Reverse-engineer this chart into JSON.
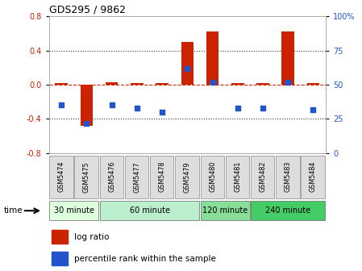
{
  "title": "GDS295 / 9862",
  "samples": [
    "GSM5474",
    "GSM5475",
    "GSM5476",
    "GSM5477",
    "GSM5478",
    "GSM5479",
    "GSM5480",
    "GSM5481",
    "GSM5482",
    "GSM5483",
    "GSM5484"
  ],
  "log_ratio": [
    0.02,
    -0.48,
    0.03,
    0.02,
    0.02,
    0.5,
    0.62,
    0.02,
    0.02,
    0.62,
    0.02
  ],
  "percentile": [
    35,
    22,
    35,
    33,
    30,
    62,
    52,
    33,
    33,
    52,
    32
  ],
  "ylim_left": [
    -0.8,
    0.8
  ],
  "ylim_right": [
    0,
    100
  ],
  "yticks_left": [
    -0.8,
    -0.4,
    0.0,
    0.4,
    0.8
  ],
  "yticks_right": [
    0,
    25,
    50,
    75,
    100
  ],
  "bar_color": "#cc2200",
  "dot_color": "#2255cc",
  "zero_line_color": "#cc2200",
  "dotted_line_color": "#333333",
  "groups": [
    {
      "label": "30 minute",
      "start": 0,
      "end": 1,
      "color": "#ddffdd"
    },
    {
      "label": "60 minute",
      "start": 2,
      "end": 5,
      "color": "#bbeecc"
    },
    {
      "label": "120 minute",
      "start": 6,
      "end": 7,
      "color": "#88dd99"
    },
    {
      "label": "240 minute",
      "start": 8,
      "end": 10,
      "color": "#44cc66"
    }
  ],
  "time_label": "time",
  "legend1": "log ratio",
  "legend2": "percentile rank within the sample",
  "background_color": "#ffffff",
  "plot_bg": "#ffffff",
  "sample_box_color": "#dddddd",
  "sample_box_edge": "#888888"
}
